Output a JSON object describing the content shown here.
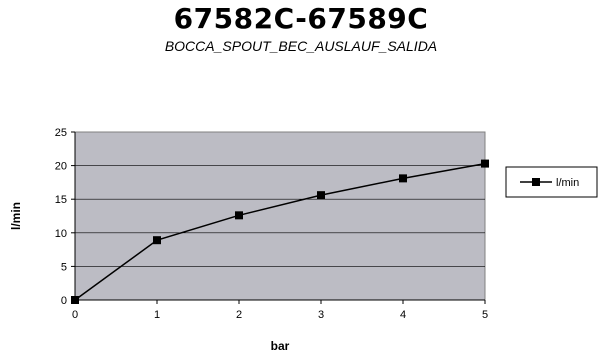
{
  "chart_data": {
    "type": "line",
    "title": "67582C-67589C",
    "subtitle": "BOCCA_SPOUT_BEC_AUSLAUF_SALIDA",
    "xlabel": "bar",
    "ylabel": "l/min",
    "x": [
      0,
      1,
      2,
      3,
      4,
      5
    ],
    "xticks": [
      "0",
      "1",
      "2",
      "3",
      "4",
      "5"
    ],
    "yticks": [
      "0",
      "5",
      "10",
      "15",
      "20",
      "25"
    ],
    "xlim": [
      0,
      5
    ],
    "ylim": [
      0,
      25
    ],
    "grid": true,
    "legend_position": "right",
    "series": [
      {
        "name": "l/min",
        "values": [
          0,
          8.9,
          12.6,
          15.6,
          18.1,
          20.3
        ],
        "color": "#000000"
      }
    ],
    "plot_background": "#bcbcc4"
  }
}
